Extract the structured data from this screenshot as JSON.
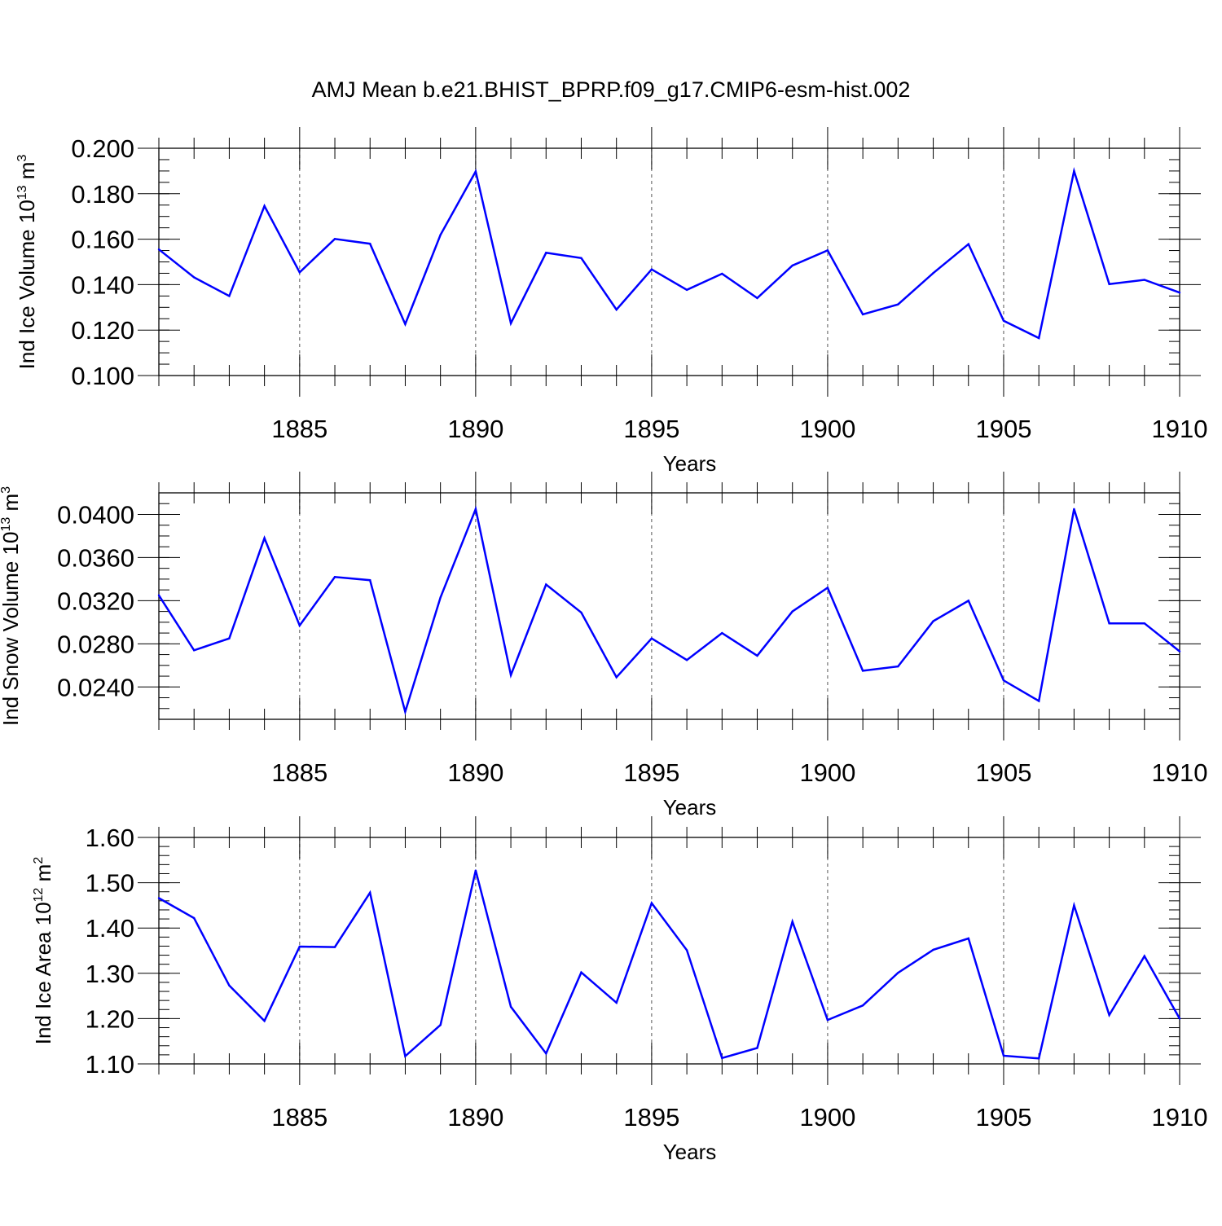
{
  "title": "AMJ Mean b.e21.BHIST_BPRP.f09_g17.CMIP6-esm-hist.002",
  "colors": {
    "line": "#0000ff",
    "axis": "#000000",
    "grid": "#555555"
  },
  "chart_data": [
    {
      "type": "line",
      "ylabel": "Ind Ice Volume",
      "yunit_base": "10",
      "yunit_exp": "13",
      "yunit_sym": "m",
      "yunit_pow": "3",
      "xlabel": "Years",
      "xlim": [
        1881,
        1910
      ],
      "ylim": [
        0.1,
        0.2
      ],
      "yticks": [
        0.1,
        0.12,
        0.14,
        0.16,
        0.18,
        0.2
      ],
      "ytick_labels": [
        "0.100",
        "0.120",
        "0.140",
        "0.160",
        "0.180",
        "0.200"
      ],
      "yminor_step": 0.005,
      "xticks": [
        1885,
        1890,
        1895,
        1900,
        1905,
        1910
      ],
      "xtick_labels": [
        "1885",
        "1890",
        "1895",
        "1900",
        "1905",
        "1910"
      ],
      "grid": "vertical dashed at major x ticks",
      "x": [
        1881,
        1882,
        1883,
        1884,
        1885,
        1886,
        1887,
        1888,
        1889,
        1890,
        1891,
        1892,
        1893,
        1894,
        1895,
        1896,
        1897,
        1898,
        1899,
        1900,
        1901,
        1902,
        1903,
        1904,
        1905,
        1906,
        1907,
        1908,
        1909,
        1910
      ],
      "values": [
        0.1555,
        0.1432,
        0.135,
        0.1746,
        0.1454,
        0.1601,
        0.158,
        0.1226,
        0.1619,
        0.1898,
        0.123,
        0.154,
        0.1517,
        0.129,
        0.1467,
        0.1377,
        0.1448,
        0.1341,
        0.1484,
        0.1551,
        0.1269,
        0.1313,
        0.1451,
        0.1578,
        0.1241,
        0.1165,
        0.19,
        0.1402,
        0.1421,
        0.1365
      ]
    },
    {
      "type": "line",
      "ylabel": "Ind Snow Volume",
      "yunit_base": "10",
      "yunit_exp": "13",
      "yunit_sym": "m",
      "yunit_pow": "3",
      "xlabel": "Years",
      "xlim": [
        1881,
        1910
      ],
      "ylim": [
        0.021,
        0.042
      ],
      "yticks": [
        0.024,
        0.028,
        0.032,
        0.036,
        0.04
      ],
      "ytick_labels": [
        "0.0240",
        "0.0280",
        "0.0320",
        "0.0360",
        "0.0400"
      ],
      "yminor_step": 0.001,
      "xticks": [
        1885,
        1890,
        1895,
        1900,
        1905,
        1910
      ],
      "xtick_labels": [
        "1885",
        "1890",
        "1895",
        "1900",
        "1905",
        "1910"
      ],
      "grid": "vertical dashed at major x ticks",
      "x": [
        1881,
        1882,
        1883,
        1884,
        1885,
        1886,
        1887,
        1888,
        1889,
        1890,
        1891,
        1892,
        1893,
        1894,
        1895,
        1896,
        1897,
        1898,
        1899,
        1900,
        1901,
        1902,
        1903,
        1904,
        1905,
        1906,
        1907,
        1908,
        1909,
        1910
      ],
      "values": [
        0.0325,
        0.0274,
        0.0285,
        0.0378,
        0.0297,
        0.0342,
        0.0339,
        0.0217,
        0.0323,
        0.0405,
        0.0251,
        0.0335,
        0.0309,
        0.0249,
        0.0285,
        0.0265,
        0.029,
        0.0269,
        0.031,
        0.0332,
        0.0255,
        0.0259,
        0.0301,
        0.032,
        0.0246,
        0.0227,
        0.0405,
        0.0299,
        0.0299,
        0.0273
      ]
    },
    {
      "type": "line",
      "ylabel": "Ind Ice Area",
      "yunit_base": "10",
      "yunit_exp": "12",
      "yunit_sym": "m",
      "yunit_pow": "2",
      "xlabel": "Years",
      "xlim": [
        1881,
        1910
      ],
      "ylim": [
        1.1,
        1.6
      ],
      "yticks": [
        1.1,
        1.2,
        1.3,
        1.4,
        1.5,
        1.6
      ],
      "ytick_labels": [
        "1.10",
        "1.20",
        "1.30",
        "1.40",
        "1.50",
        "1.60"
      ],
      "yminor_step": 0.02,
      "xticks": [
        1885,
        1890,
        1895,
        1900,
        1905,
        1910
      ],
      "xtick_labels": [
        "1885",
        "1890",
        "1895",
        "1900",
        "1905",
        "1910"
      ],
      "grid": "vertical dashed at major x ticks",
      "x": [
        1881,
        1882,
        1883,
        1884,
        1885,
        1886,
        1887,
        1888,
        1889,
        1890,
        1891,
        1892,
        1893,
        1894,
        1895,
        1896,
        1897,
        1898,
        1899,
        1900,
        1901,
        1902,
        1903,
        1904,
        1905,
        1906,
        1907,
        1908,
        1909,
        1910
      ],
      "values": [
        1.466,
        1.422,
        1.273,
        1.195,
        1.359,
        1.358,
        1.478,
        1.117,
        1.186,
        1.527,
        1.226,
        1.123,
        1.302,
        1.235,
        1.455,
        1.351,
        1.113,
        1.135,
        1.414,
        1.197,
        1.229,
        1.301,
        1.352,
        1.377,
        1.118,
        1.112,
        1.45,
        1.208,
        1.338,
        1.2
      ]
    }
  ]
}
